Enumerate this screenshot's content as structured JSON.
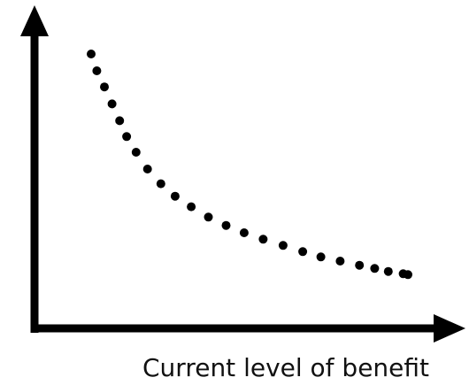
{
  "chart_data": {
    "type": "scatter",
    "title": "",
    "xlabel": "Current level of benefit",
    "ylabel": "",
    "grid": false,
    "legend": "none",
    "xlim": [
      0,
      1
    ],
    "ylim": [
      0,
      1
    ],
    "series": [
      {
        "x": [
          0.0,
          0.018,
          0.042,
          0.066,
          0.09,
          0.112,
          0.142,
          0.178,
          0.22,
          0.265,
          0.316,
          0.37,
          0.426,
          0.483,
          0.543,
          0.606,
          0.668,
          0.725,
          0.786,
          0.847,
          0.895,
          0.938,
          0.985,
          1.0
        ],
        "y": [
          1.0,
          0.927,
          0.857,
          0.783,
          0.71,
          0.641,
          0.573,
          0.5,
          0.436,
          0.382,
          0.336,
          0.291,
          0.255,
          0.223,
          0.195,
          0.168,
          0.141,
          0.118,
          0.1,
          0.082,
          0.068,
          0.055,
          0.045,
          0.041
        ]
      }
    ],
    "colors": {
      "axes": "#000000",
      "points": "#000000",
      "label": "#111111"
    }
  }
}
